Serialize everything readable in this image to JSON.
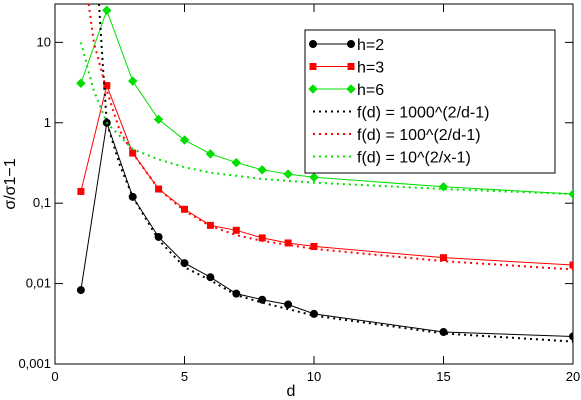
{
  "chart_data": {
    "type": "line",
    "log_y": true,
    "xlabel": "d",
    "ylabel": "σ/σ1−1",
    "xlim": [
      0,
      20
    ],
    "xticks": [
      0,
      5,
      10,
      15,
      20
    ],
    "ylim": [
      0.001,
      30
    ],
    "yticks": [
      {
        "value": 0.001,
        "label": "0,001"
      },
      {
        "value": 0.01,
        "label": "0,01"
      },
      {
        "value": 0.1,
        "label": "0,1"
      },
      1,
      10
    ],
    "legend": "upper right",
    "series": [
      {
        "name": "h=2",
        "color": "#000000",
        "marker": "circle",
        "style": "solid",
        "x": [
          1,
          2,
          3,
          4,
          5,
          6,
          7,
          8,
          9,
          10,
          15,
          20
        ],
        "values": [
          0.0083,
          1.0,
          0.12,
          0.038,
          0.018,
          0.012,
          0.0075,
          0.0063,
          0.0055,
          0.0042,
          0.0025,
          0.0022
        ]
      },
      {
        "name": "h=3",
        "color": "#ff0000",
        "marker": "square",
        "style": "solid",
        "x": [
          1,
          2,
          3,
          4,
          5,
          6,
          7,
          8,
          9,
          10,
          15,
          20
        ],
        "values": [
          0.14,
          2.9,
          0.42,
          0.15,
          0.084,
          0.053,
          0.046,
          0.037,
          0.032,
          0.029,
          0.021,
          0.017
        ]
      },
      {
        "name": "h=6",
        "color": "#00e000",
        "marker": "diamond",
        "style": "solid",
        "x": [
          1,
          2,
          3,
          4,
          5,
          6,
          7,
          8,
          9,
          10,
          15,
          20
        ],
        "values": [
          3.1,
          25,
          3.3,
          1.1,
          0.61,
          0.41,
          0.32,
          0.26,
          0.23,
          0.21,
          0.16,
          0.13
        ]
      },
      {
        "name": "f(d) = 1000^(2/d-1)",
        "color": "#000000",
        "style": "dotted",
        "x": [
          1.7,
          1.85,
          2,
          2.5,
          3,
          4,
          5,
          6,
          7,
          8,
          10,
          15,
          20
        ],
        "values": [
          30,
          5,
          1.0,
          0.3,
          0.12,
          0.035,
          0.016,
          0.011,
          0.0072,
          0.0058,
          0.004,
          0.0024,
          0.0019
        ]
      },
      {
        "name": "f(d) = 100^(2/d-1)",
        "color": "#ff0000",
        "style": "dotted",
        "x": [
          1.3,
          1.5,
          2,
          2.5,
          3,
          4,
          5,
          6,
          7,
          8,
          10,
          15,
          20
        ],
        "values": [
          30,
          10,
          2.5,
          0.8,
          0.42,
          0.15,
          0.08,
          0.052,
          0.04,
          0.034,
          0.027,
          0.019,
          0.015
        ]
      },
      {
        "name": "f(d) = 10^(2/x-1)",
        "color": "#00e000",
        "style": "dotted",
        "x": [
          1,
          1.5,
          2,
          3,
          4,
          5,
          6,
          8,
          10,
          15,
          20
        ],
        "values": [
          10,
          2.5,
          1.0,
          0.47,
          0.35,
          0.28,
          0.24,
          0.2,
          0.18,
          0.15,
          0.13
        ]
      }
    ]
  }
}
